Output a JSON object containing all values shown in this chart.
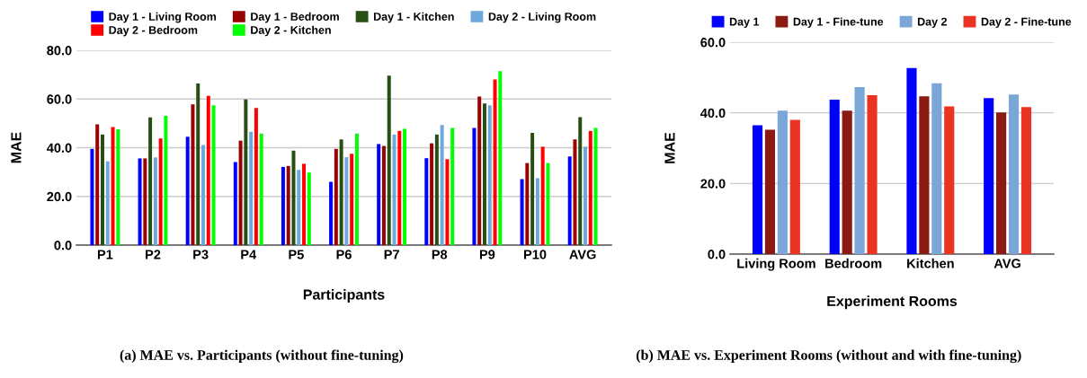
{
  "chart_data": [
    {
      "type": "bar",
      "xlabel": "Participants",
      "ylabel": "MAE",
      "categories": [
        "P1",
        "P2",
        "P3",
        "P4",
        "P5",
        "P6",
        "P7",
        "P8",
        "P9",
        "P10",
        "AVG"
      ],
      "series": [
        {
          "name": "Day 1 - Living Room",
          "color": "#0000ff",
          "values": [
            39.5,
            35.6,
            44.5,
            34.1,
            32.1,
            26.0,
            41.5,
            35.7,
            48.1,
            27.1,
            36.4
          ]
        },
        {
          "name": "Day 1 - Bedroom",
          "color": "#990000",
          "values": [
            49.6,
            35.6,
            57.8,
            42.9,
            32.5,
            39.5,
            40.7,
            41.8,
            61.0,
            33.7,
            43.4
          ]
        },
        {
          "name": "Day 1 - Kitchen",
          "color": "#274e13",
          "values": [
            45.4,
            52.4,
            66.4,
            59.8,
            38.8,
            43.4,
            69.6,
            45.4,
            58.2,
            46.1,
            52.5
          ]
        },
        {
          "name": "Day 2 - Living Room",
          "color": "#6fa8dc",
          "values": [
            34.4,
            36.0,
            41.1,
            46.5,
            30.9,
            36.1,
            45.4,
            49.3,
            57.4,
            27.5,
            40.4
          ]
        },
        {
          "name": "Day 2 - Bedroom",
          "color": "#ff0000",
          "values": [
            48.5,
            43.8,
            61.3,
            56.3,
            33.4,
            37.5,
            46.9,
            35.3,
            68.0,
            40.4,
            46.9
          ]
        },
        {
          "name": "Day 2 - Kitchen",
          "color": "#00ff00",
          "values": [
            47.6,
            53.1,
            57.4,
            45.8,
            29.8,
            45.8,
            47.7,
            48.1,
            71.4,
            33.7,
            48.1
          ]
        }
      ],
      "ylim": [
        0,
        80
      ],
      "yticks": [
        {
          "value": 0,
          "label": "0.0"
        },
        {
          "value": 20,
          "label": "20.0"
        },
        {
          "value": 40,
          "label": "40.0"
        },
        {
          "value": 60,
          "label": "60.0"
        },
        {
          "value": 80,
          "label": "80.0"
        }
      ],
      "grid": "y",
      "legend": "top",
      "annotations": [
        "(a) MAE vs. Participants (without fine-tuning)"
      ]
    },
    {
      "type": "bar",
      "xlabel": "Experiment Rooms",
      "ylabel": "MAE",
      "categories": [
        "Living Room",
        "Bedroom",
        "Kitchen",
        "AVG"
      ],
      "series": [
        {
          "name": "Day 1",
          "color": "#0000ff",
          "values": [
            36.5,
            43.7,
            52.7,
            44.2
          ]
        },
        {
          "name": "Day 1 - Fine-tune",
          "color": "#8b1a10",
          "values": [
            35.2,
            40.6,
            44.7,
            40.1
          ]
        },
        {
          "name": "Day 2",
          "color": "#7ba7d8",
          "values": [
            40.6,
            47.3,
            48.4,
            45.2
          ]
        },
        {
          "name": "Day 2 - Fine-tune",
          "color": "#ea3323",
          "values": [
            38.0,
            45.0,
            41.8,
            41.6
          ]
        }
      ],
      "ylim": [
        0,
        60
      ],
      "yticks": [
        {
          "value": 0,
          "label": "0.0"
        },
        {
          "value": 20,
          "label": "20.0"
        },
        {
          "value": 40,
          "label": "40.0"
        },
        {
          "value": 60,
          "label": "60.0"
        }
      ],
      "grid": "y",
      "legend": "top",
      "annotations": [
        "(b) MAE vs. Experiment Rooms (without and with fine-tuning)"
      ]
    }
  ]
}
